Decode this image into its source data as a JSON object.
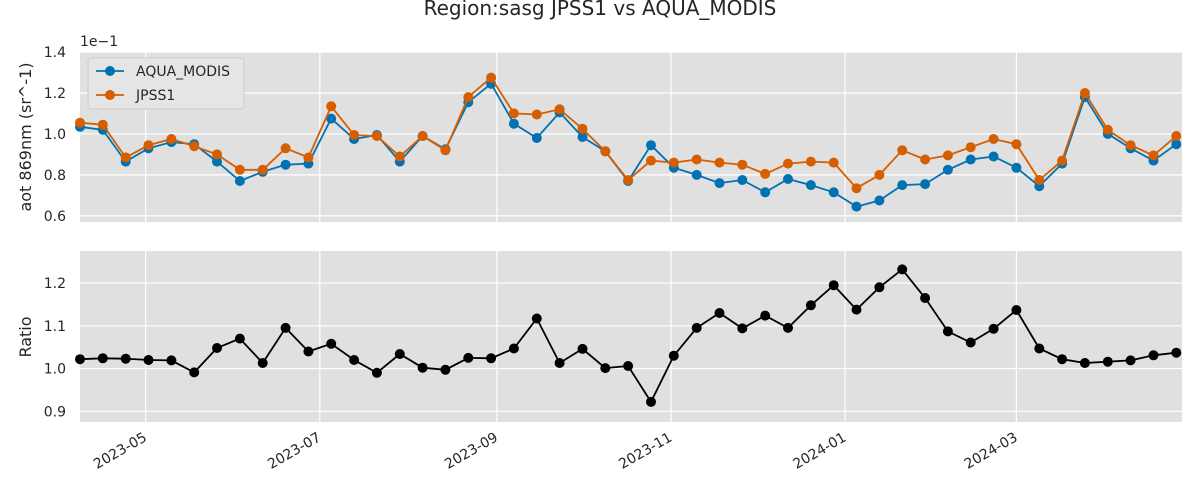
{
  "chart_data": {
    "type": "line",
    "title": "Region:sasg JPSS1 vs AQUA_MODIS",
    "x_dates": [
      "2023-04-08",
      "2023-04-16",
      "2023-04-24",
      "2023-05-02",
      "2023-05-10",
      "2023-05-18",
      "2023-05-26",
      "2023-06-03",
      "2023-06-11",
      "2023-06-19",
      "2023-06-27",
      "2023-07-05",
      "2023-07-13",
      "2023-07-21",
      "2023-07-29",
      "2023-08-06",
      "2023-08-14",
      "2023-08-22",
      "2023-08-30",
      "2023-09-07",
      "2023-09-15",
      "2023-09-23",
      "2023-10-01",
      "2023-10-09",
      "2023-10-17",
      "2023-10-25",
      "2023-11-02",
      "2023-11-10",
      "2023-11-18",
      "2023-11-26",
      "2023-12-04",
      "2023-12-12",
      "2023-12-20",
      "2023-12-28",
      "2024-01-05",
      "2024-01-13",
      "2024-01-21",
      "2024-01-29",
      "2024-02-06",
      "2024-02-14",
      "2024-02-22",
      "2024-03-01",
      "2024-03-09",
      "2024-03-17",
      "2024-03-25",
      "2024-04-02",
      "2024-04-10",
      "2024-04-18",
      "2024-04-26"
    ],
    "top_panel": {
      "ylabel": "aot 869nm (sr^-1)",
      "offset_text": "1e−1",
      "ylim": [
        0.57,
        1.4
      ],
      "yticks": [
        0.6,
        0.8,
        1.0,
        1.2,
        1.4
      ],
      "legend_position": "upper left",
      "series": [
        {
          "name": "AQUA_MODIS",
          "color": "#0072b2",
          "values": [
            1.035,
            1.02,
            0.865,
            0.93,
            0.96,
            0.95,
            0.865,
            0.77,
            0.815,
            0.85,
            0.855,
            1.075,
            0.975,
            0.995,
            0.865,
            0.99,
            0.925,
            1.155,
            1.245,
            1.05,
            0.98,
            1.105,
            0.985,
            0.915,
            0.77,
            0.945,
            0.835,
            0.8,
            0.76,
            0.775,
            0.715,
            0.78,
            0.75,
            0.715,
            0.645,
            0.675,
            0.75,
            0.755,
            0.825,
            0.875,
            0.89,
            0.835,
            0.745,
            0.855,
            1.18,
            1.0,
            0.93,
            0.87,
            0.95
          ]
        },
        {
          "name": "JPSS1",
          "color": "#d55e00",
          "values": [
            1.055,
            1.045,
            0.885,
            0.945,
            0.975,
            0.94,
            0.9,
            0.825,
            0.825,
            0.93,
            0.885,
            1.135,
            0.995,
            0.99,
            0.89,
            0.99,
            0.92,
            1.18,
            1.275,
            1.1,
            1.095,
            1.12,
            1.025,
            0.915,
            0.775,
            0.87,
            0.86,
            0.875,
            0.86,
            0.85,
            0.805,
            0.855,
            0.865,
            0.86,
            0.735,
            0.8,
            0.92,
            0.875,
            0.895,
            0.935,
            0.975,
            0.95,
            0.775,
            0.87,
            1.2,
            1.02,
            0.945,
            0.895,
            0.99
          ]
        }
      ]
    },
    "bottom_panel": {
      "ylabel": "Ratio",
      "ylim": [
        0.875,
        1.275
      ],
      "yticks": [
        0.9,
        1.0,
        1.1,
        1.2
      ],
      "series": [
        {
          "name": "",
          "color": "#000000",
          "values": [
            1.022,
            1.024,
            1.023,
            1.02,
            1.019,
            0.991,
            1.048,
            1.07,
            1.013,
            1.095,
            1.04,
            1.058,
            1.02,
            0.99,
            1.034,
            1.002,
            0.997,
            1.025,
            1.024,
            1.047,
            1.117,
            1.013,
            1.046,
            1.001,
            1.006,
            0.922,
            1.03,
            1.095,
            1.13,
            1.094,
            1.124,
            1.095,
            1.148,
            1.195,
            1.138,
            1.19,
            1.232,
            1.165,
            1.087,
            1.061,
            1.093,
            1.137,
            1.047,
            1.022,
            1.013,
            1.016,
            1.019,
            1.031,
            1.037
          ]
        }
      ]
    },
    "xlim": [
      "2023-04-08",
      "2024-04-28"
    ],
    "xticks": [
      "2023-05-01",
      "2023-07-01",
      "2023-09-01",
      "2023-11-01",
      "2024-01-01",
      "2024-03-01"
    ],
    "xtick_labels": [
      "2023-05",
      "2023-07",
      "2023-09",
      "2023-11",
      "2024-01",
      "2024-03"
    ],
    "grid": true,
    "colors": {
      "background": "#e0e0e0",
      "grid": "#ffffff",
      "text": "#262626"
    }
  }
}
